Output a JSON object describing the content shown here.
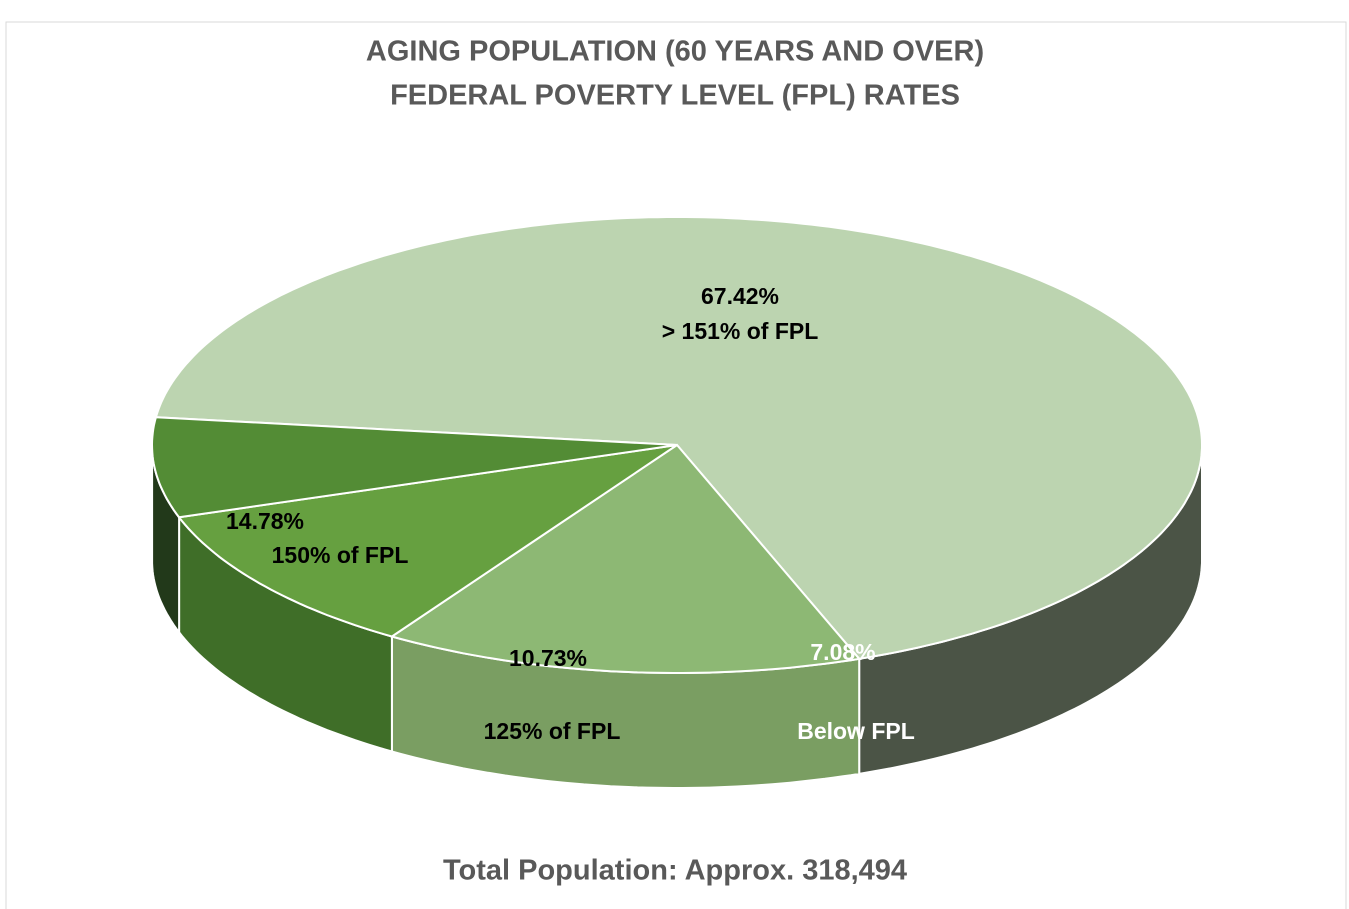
{
  "chart_data": {
    "type": "pie3d",
    "title": [
      "AGING POPULATION (60 YEARS AND OVER)",
      "FEDERAL POVERTY LEVEL (FPL) RATES"
    ],
    "categories": [
      "> 151% of FPL",
      "150% of FPL",
      "125% of FPL",
      "Below FPL"
    ],
    "values": [
      67.42,
      14.78,
      10.73,
      7.08
    ],
    "value_labels": [
      "67.42%",
      "14.78%",
      "10.73%",
      "7.08%"
    ],
    "colors": [
      "#bcd4b0",
      "#8db874",
      "#66a040",
      "#538c35"
    ],
    "side_colors": [
      "#4b5446",
      "#7a9e62",
      "#3f6e28",
      "#22391a"
    ],
    "annotation": "Total Population: Approx. 318,494"
  }
}
